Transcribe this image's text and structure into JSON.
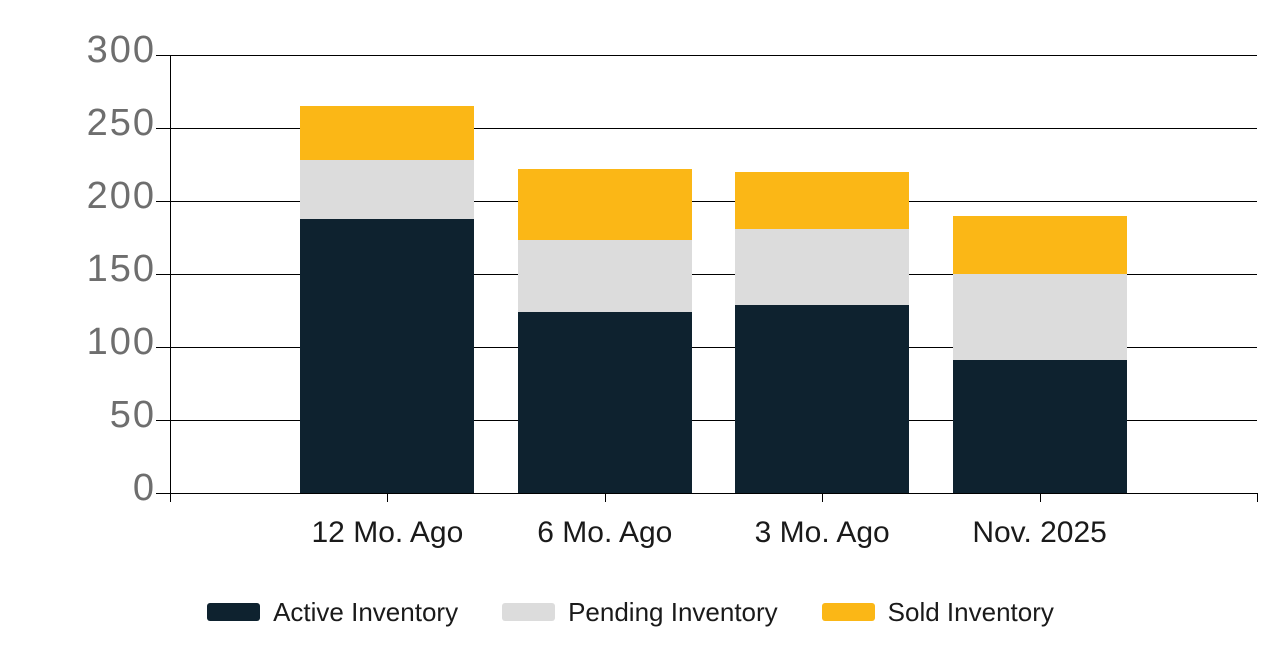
{
  "chart_data": {
    "type": "bar",
    "stacked": true,
    "title": "",
    "xlabel": "",
    "ylabel": "",
    "categories": [
      "12 Mo. Ago",
      "6 Mo. Ago",
      "3 Mo. Ago",
      "Nov. 2025"
    ],
    "series": [
      {
        "name": "Active Inventory",
        "color": "#0e222f",
        "values": [
          188,
          124,
          129,
          91
        ]
      },
      {
        "name": "Pending Inventory",
        "color": "#dcdcdc",
        "values": [
          40,
          49,
          52,
          59
        ]
      },
      {
        "name": "Sold Inventory",
        "color": "#fbb716",
        "values": [
          37,
          49,
          39,
          40
        ]
      }
    ],
    "stack_totals": [
      265,
      222,
      220,
      190
    ],
    "ylim": [
      0,
      300
    ],
    "yticks": [
      0,
      50,
      100,
      150,
      200,
      250,
      300
    ],
    "grid": true,
    "legend_position": "bottom"
  },
  "colors": {
    "background": "#ffffff",
    "grid_line": "#000000",
    "y_tick_label": "#6e6e6e",
    "x_tick_label": "#1a1a1a",
    "legend_text": "#1a1a1a"
  }
}
